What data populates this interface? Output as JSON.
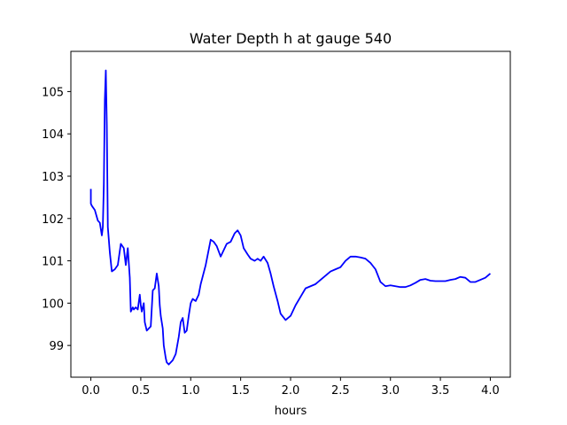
{
  "chart_data": {
    "type": "line",
    "title": "Water Depth h at gauge 540",
    "xlabel": "hours",
    "ylabel": "",
    "xlim": [
      -0.2,
      4.2
    ],
    "ylim": [
      98.25,
      105.95
    ],
    "xticks": [
      0.0,
      0.5,
      1.0,
      1.5,
      2.0,
      2.5,
      3.0,
      3.5,
      4.0
    ],
    "xtick_labels": [
      "0.0",
      "0.5",
      "1.0",
      "1.5",
      "2.0",
      "2.5",
      "3.0",
      "3.5",
      "4.0"
    ],
    "yticks": [
      99,
      100,
      101,
      102,
      103,
      104,
      105
    ],
    "ytick_labels": [
      "99",
      "100",
      "101",
      "102",
      "103",
      "104",
      "105"
    ],
    "grid": false,
    "series": [
      {
        "color": "#0000ff",
        "x": [
          0.0,
          0.0,
          0.01,
          0.04,
          0.07,
          0.09,
          0.11,
          0.12,
          0.13,
          0.14,
          0.15,
          0.16,
          0.17,
          0.19,
          0.21,
          0.24,
          0.27,
          0.3,
          0.33,
          0.35,
          0.37,
          0.39,
          0.4,
          0.42,
          0.43,
          0.45,
          0.47,
          0.49,
          0.5,
          0.51,
          0.53,
          0.54,
          0.56,
          0.58,
          0.6,
          0.62,
          0.64,
          0.66,
          0.68,
          0.69,
          0.7,
          0.72,
          0.73,
          0.75,
          0.76,
          0.78,
          0.8,
          0.82,
          0.85,
          0.88,
          0.9,
          0.92,
          0.94,
          0.96,
          0.98,
          1.0,
          1.02,
          1.05,
          1.08,
          1.1,
          1.15,
          1.2,
          1.23,
          1.26,
          1.3,
          1.32,
          1.36,
          1.4,
          1.44,
          1.47,
          1.5,
          1.53,
          1.57,
          1.6,
          1.64,
          1.67,
          1.7,
          1.73,
          1.77,
          1.8,
          1.83,
          1.87,
          1.9,
          1.95,
          2.0,
          2.05,
          2.1,
          2.15,
          2.2,
          2.25,
          2.3,
          2.35,
          2.4,
          2.45,
          2.5,
          2.55,
          2.6,
          2.65,
          2.7,
          2.75,
          2.8,
          2.85,
          2.9,
          2.95,
          3.0,
          3.05,
          3.1,
          3.15,
          3.2,
          3.25,
          3.3,
          3.35,
          3.4,
          3.45,
          3.5,
          3.55,
          3.6,
          3.65,
          3.7,
          3.75,
          3.8,
          3.85,
          3.9,
          3.95,
          4.0
        ],
        "values": [
          102.7,
          102.35,
          102.3,
          102.2,
          101.95,
          101.9,
          101.6,
          101.8,
          102.8,
          104.8,
          105.5,
          104.2,
          101.8,
          101.2,
          100.75,
          100.8,
          100.9,
          101.4,
          101.3,
          100.9,
          101.3,
          100.6,
          99.8,
          99.9,
          99.85,
          99.9,
          99.85,
          100.2,
          99.95,
          99.8,
          100.0,
          99.55,
          99.35,
          99.4,
          99.45,
          100.3,
          100.35,
          100.7,
          100.4,
          99.95,
          99.7,
          99.4,
          99.0,
          98.7,
          98.6,
          98.55,
          98.6,
          98.65,
          98.8,
          99.2,
          99.55,
          99.65,
          99.3,
          99.35,
          99.7,
          100.0,
          100.1,
          100.05,
          100.2,
          100.45,
          100.9,
          101.5,
          101.45,
          101.35,
          101.1,
          101.2,
          101.4,
          101.45,
          101.65,
          101.72,
          101.6,
          101.3,
          101.15,
          101.05,
          101.0,
          101.05,
          101.0,
          101.1,
          100.95,
          100.7,
          100.4,
          100.05,
          99.75,
          99.6,
          99.7,
          99.95,
          100.15,
          100.35,
          100.4,
          100.45,
          100.55,
          100.65,
          100.75,
          100.8,
          100.85,
          101.0,
          101.1,
          101.1,
          101.08,
          101.05,
          100.95,
          100.8,
          100.5,
          100.4,
          100.42,
          100.4,
          100.38,
          100.38,
          100.42,
          100.48,
          100.55,
          100.57,
          100.53,
          100.52,
          100.52,
          100.52,
          100.55,
          100.57,
          100.62,
          100.6,
          100.5,
          100.5,
          100.55,
          100.6,
          100.7
        ]
      }
    ]
  }
}
